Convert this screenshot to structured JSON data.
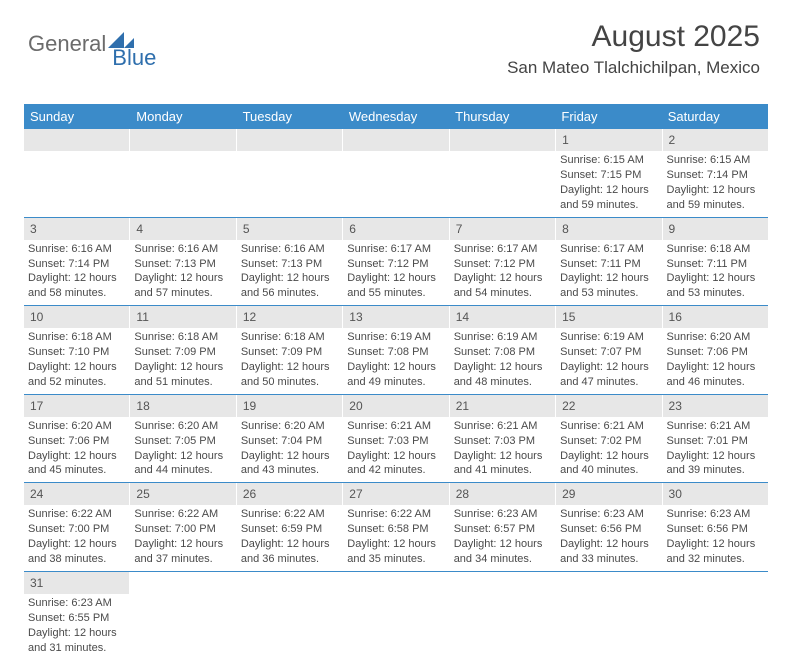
{
  "brand": {
    "general": "General",
    "blue": "Blue"
  },
  "header": {
    "month_title": "August 2025",
    "location": "San Mateo Tlalchichilpan, Mexico"
  },
  "colors": {
    "header_bg": "#3b8bc9",
    "header_text": "#ffffff",
    "daynum_bg": "#e7e7e7",
    "text": "#4a4a4a",
    "row_border": "#3b8bc9"
  },
  "weekdays": [
    "Sunday",
    "Monday",
    "Tuesday",
    "Wednesday",
    "Thursday",
    "Friday",
    "Saturday"
  ],
  "weeks": [
    [
      {
        "empty": true
      },
      {
        "empty": true
      },
      {
        "empty": true
      },
      {
        "empty": true
      },
      {
        "empty": true
      },
      {
        "day": "1",
        "sunrise": "Sunrise: 6:15 AM",
        "sunset": "Sunset: 7:15 PM",
        "daylight": "Daylight: 12 hours and 59 minutes."
      },
      {
        "day": "2",
        "sunrise": "Sunrise: 6:15 AM",
        "sunset": "Sunset: 7:14 PM",
        "daylight": "Daylight: 12 hours and 59 minutes."
      }
    ],
    [
      {
        "day": "3",
        "sunrise": "Sunrise: 6:16 AM",
        "sunset": "Sunset: 7:14 PM",
        "daylight": "Daylight: 12 hours and 58 minutes."
      },
      {
        "day": "4",
        "sunrise": "Sunrise: 6:16 AM",
        "sunset": "Sunset: 7:13 PM",
        "daylight": "Daylight: 12 hours and 57 minutes."
      },
      {
        "day": "5",
        "sunrise": "Sunrise: 6:16 AM",
        "sunset": "Sunset: 7:13 PM",
        "daylight": "Daylight: 12 hours and 56 minutes."
      },
      {
        "day": "6",
        "sunrise": "Sunrise: 6:17 AM",
        "sunset": "Sunset: 7:12 PM",
        "daylight": "Daylight: 12 hours and 55 minutes."
      },
      {
        "day": "7",
        "sunrise": "Sunrise: 6:17 AM",
        "sunset": "Sunset: 7:12 PM",
        "daylight": "Daylight: 12 hours and 54 minutes."
      },
      {
        "day": "8",
        "sunrise": "Sunrise: 6:17 AM",
        "sunset": "Sunset: 7:11 PM",
        "daylight": "Daylight: 12 hours and 53 minutes."
      },
      {
        "day": "9",
        "sunrise": "Sunrise: 6:18 AM",
        "sunset": "Sunset: 7:11 PM",
        "daylight": "Daylight: 12 hours and 53 minutes."
      }
    ],
    [
      {
        "day": "10",
        "sunrise": "Sunrise: 6:18 AM",
        "sunset": "Sunset: 7:10 PM",
        "daylight": "Daylight: 12 hours and 52 minutes."
      },
      {
        "day": "11",
        "sunrise": "Sunrise: 6:18 AM",
        "sunset": "Sunset: 7:09 PM",
        "daylight": "Daylight: 12 hours and 51 minutes."
      },
      {
        "day": "12",
        "sunrise": "Sunrise: 6:18 AM",
        "sunset": "Sunset: 7:09 PM",
        "daylight": "Daylight: 12 hours and 50 minutes."
      },
      {
        "day": "13",
        "sunrise": "Sunrise: 6:19 AM",
        "sunset": "Sunset: 7:08 PM",
        "daylight": "Daylight: 12 hours and 49 minutes."
      },
      {
        "day": "14",
        "sunrise": "Sunrise: 6:19 AM",
        "sunset": "Sunset: 7:08 PM",
        "daylight": "Daylight: 12 hours and 48 minutes."
      },
      {
        "day": "15",
        "sunrise": "Sunrise: 6:19 AM",
        "sunset": "Sunset: 7:07 PM",
        "daylight": "Daylight: 12 hours and 47 minutes."
      },
      {
        "day": "16",
        "sunrise": "Sunrise: 6:20 AM",
        "sunset": "Sunset: 7:06 PM",
        "daylight": "Daylight: 12 hours and 46 minutes."
      }
    ],
    [
      {
        "day": "17",
        "sunrise": "Sunrise: 6:20 AM",
        "sunset": "Sunset: 7:06 PM",
        "daylight": "Daylight: 12 hours and 45 minutes."
      },
      {
        "day": "18",
        "sunrise": "Sunrise: 6:20 AM",
        "sunset": "Sunset: 7:05 PM",
        "daylight": "Daylight: 12 hours and 44 minutes."
      },
      {
        "day": "19",
        "sunrise": "Sunrise: 6:20 AM",
        "sunset": "Sunset: 7:04 PM",
        "daylight": "Daylight: 12 hours and 43 minutes."
      },
      {
        "day": "20",
        "sunrise": "Sunrise: 6:21 AM",
        "sunset": "Sunset: 7:03 PM",
        "daylight": "Daylight: 12 hours and 42 minutes."
      },
      {
        "day": "21",
        "sunrise": "Sunrise: 6:21 AM",
        "sunset": "Sunset: 7:03 PM",
        "daylight": "Daylight: 12 hours and 41 minutes."
      },
      {
        "day": "22",
        "sunrise": "Sunrise: 6:21 AM",
        "sunset": "Sunset: 7:02 PM",
        "daylight": "Daylight: 12 hours and 40 minutes."
      },
      {
        "day": "23",
        "sunrise": "Sunrise: 6:21 AM",
        "sunset": "Sunset: 7:01 PM",
        "daylight": "Daylight: 12 hours and 39 minutes."
      }
    ],
    [
      {
        "day": "24",
        "sunrise": "Sunrise: 6:22 AM",
        "sunset": "Sunset: 7:00 PM",
        "daylight": "Daylight: 12 hours and 38 minutes."
      },
      {
        "day": "25",
        "sunrise": "Sunrise: 6:22 AM",
        "sunset": "Sunset: 7:00 PM",
        "daylight": "Daylight: 12 hours and 37 minutes."
      },
      {
        "day": "26",
        "sunrise": "Sunrise: 6:22 AM",
        "sunset": "Sunset: 6:59 PM",
        "daylight": "Daylight: 12 hours and 36 minutes."
      },
      {
        "day": "27",
        "sunrise": "Sunrise: 6:22 AM",
        "sunset": "Sunset: 6:58 PM",
        "daylight": "Daylight: 12 hours and 35 minutes."
      },
      {
        "day": "28",
        "sunrise": "Sunrise: 6:23 AM",
        "sunset": "Sunset: 6:57 PM",
        "daylight": "Daylight: 12 hours and 34 minutes."
      },
      {
        "day": "29",
        "sunrise": "Sunrise: 6:23 AM",
        "sunset": "Sunset: 6:56 PM",
        "daylight": "Daylight: 12 hours and 33 minutes."
      },
      {
        "day": "30",
        "sunrise": "Sunrise: 6:23 AM",
        "sunset": "Sunset: 6:56 PM",
        "daylight": "Daylight: 12 hours and 32 minutes."
      }
    ],
    [
      {
        "day": "31",
        "sunrise": "Sunrise: 6:23 AM",
        "sunset": "Sunset: 6:55 PM",
        "daylight": "Daylight: 12 hours and 31 minutes."
      },
      {
        "empty": true
      },
      {
        "empty": true
      },
      {
        "empty": true
      },
      {
        "empty": true
      },
      {
        "empty": true
      },
      {
        "empty": true
      }
    ]
  ]
}
